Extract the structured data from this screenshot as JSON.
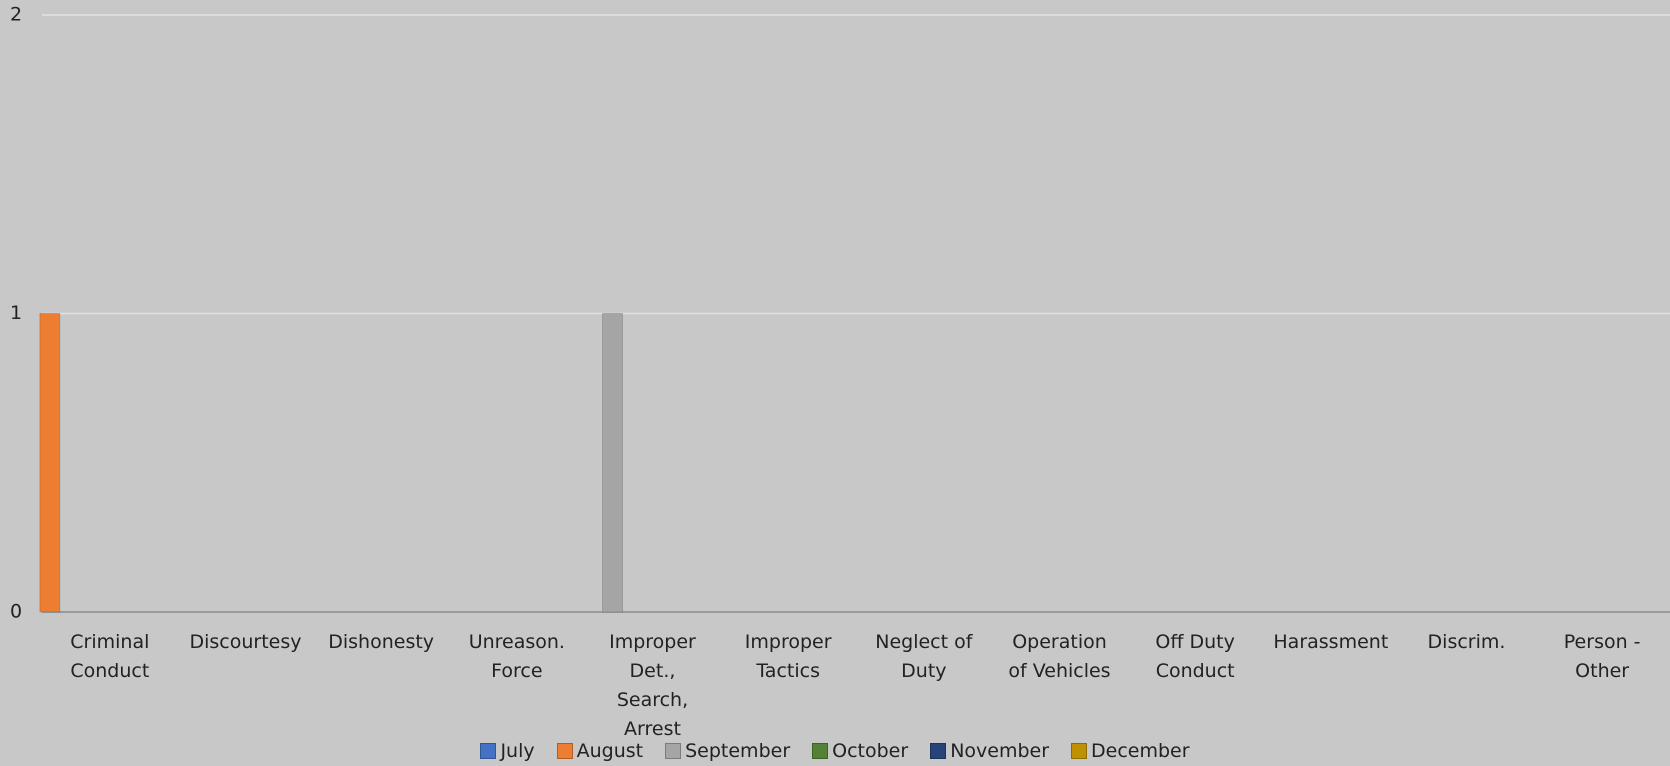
{
  "chart_data": {
    "type": "bar",
    "categories": [
      "Criminal Conduct",
      "Discourtesy",
      "Dishonesty",
      "Unreason. Force",
      "Improper Det., Search, Arrest",
      "Improper Tactics",
      "Neglect of Duty",
      "Operation of Vehicles",
      "Off Duty Conduct",
      "Harassment",
      "Discrim.",
      "Person - Other"
    ],
    "series": [
      {
        "name": "July",
        "color": "#4472c4",
        "values": [
          0,
          0,
          0,
          0,
          0,
          0,
          0,
          0,
          0,
          0,
          0,
          0
        ]
      },
      {
        "name": "August",
        "color": "#ed7d31",
        "values": [
          1,
          0,
          0,
          0,
          0,
          0,
          0,
          0,
          0,
          0,
          0,
          0
        ]
      },
      {
        "name": "September",
        "color": "#a5a5a5",
        "values": [
          0,
          0,
          0,
          0,
          1,
          0,
          0,
          0,
          0,
          0,
          0,
          0
        ]
      },
      {
        "name": "October",
        "color": "#548235",
        "values": [
          0,
          0,
          0,
          0,
          0,
          0,
          0,
          0,
          0,
          0,
          0,
          0
        ]
      },
      {
        "name": "November",
        "color": "#264478",
        "values": [
          0,
          0,
          0,
          0,
          0,
          0,
          0,
          0,
          0,
          0,
          0,
          0
        ]
      },
      {
        "name": "December",
        "color": "#bf9000",
        "values": [
          0,
          0,
          0,
          0,
          0,
          0,
          0,
          0,
          0,
          0,
          0,
          0
        ]
      }
    ],
    "ylim": [
      0,
      2
    ],
    "yticks": [
      0,
      1,
      2
    ],
    "grid": true,
    "legend": "bottom"
  }
}
